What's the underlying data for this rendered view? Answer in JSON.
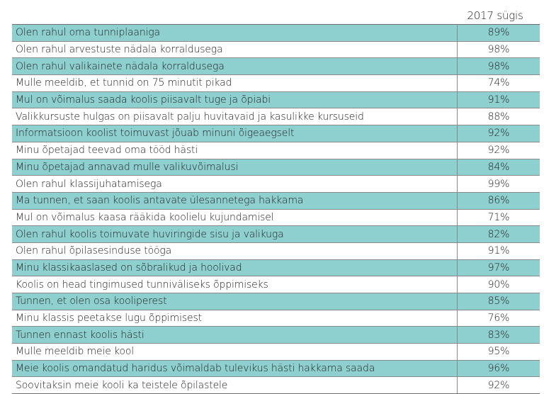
{
  "table": {
    "column_header": "2017 sügis",
    "shaded_color": "#8ecfcf",
    "rows": [
      {
        "statement": "Olen rahul oma tunniplaaniga",
        "value": "89%"
      },
      {
        "statement": "Olen rahul arvestuste nädala korraldusega",
        "value": "98%"
      },
      {
        "statement": "Olen rahul valikainete nädala korraldusega",
        "value": "98%"
      },
      {
        "statement": "Mulle meeldib, et tunnid on 75 minutit pikad",
        "value": "74%"
      },
      {
        "statement": "Mul on võimalus saada koolis piisavalt tuge ja õpiabi",
        "value": "91%"
      },
      {
        "statement": "Valikkursuste hulgas on piisavalt palju huvitavaid ja kasulikke kursuseid",
        "value": "88%"
      },
      {
        "statement": "Informatsioon koolist toimuvast jõuab minuni õigeaegselt",
        "value": "92%"
      },
      {
        "statement": "Minu õpetajad teevad oma tööd hästi",
        "value": "92%"
      },
      {
        "statement": "Minu õpetajad annavad mulle valikuvõimalusi",
        "value": "84%"
      },
      {
        "statement": "Olen rahul klassijuhatamisega",
        "value": "99%"
      },
      {
        "statement": "Ma tunnen, et saan koolis antavate ülesannetega hakkama",
        "value": "86%"
      },
      {
        "statement": "Mul on võimalus kaasa rääkida koolielu kujundamisel",
        "value": "71%"
      },
      {
        "statement": "Olen rahul koolis toimuvate huviringide sisu ja valikuga",
        "value": "82%"
      },
      {
        "statement": "Olen rahul õpilasesinduse tööga",
        "value": "91%"
      },
      {
        "statement": "Minu klassikaaslased on sõbralikud ja hoolivad",
        "value": "97%"
      },
      {
        "statement": "Koolis on head tingimused tunniväliseks õppimiseks",
        "value": "90%"
      },
      {
        "statement": "Tunnen, et olen osa kooliperest",
        "value": "85%"
      },
      {
        "statement": "Minu klassis peetakse lugu õppimisest",
        "value": "76%"
      },
      {
        "statement": "Tunnen ennast koolis hästi",
        "value": "83%"
      },
      {
        "statement": "Mulle meeldib meie kool",
        "value": "95%"
      },
      {
        "statement": "Meie koolis omandatud haridus võimaldab tulevikus hästi hakkama saada",
        "value": "96%"
      },
      {
        "statement": "Soovitaksin meie kooli ka teistele õpilastele",
        "value": "92%"
      }
    ]
  }
}
